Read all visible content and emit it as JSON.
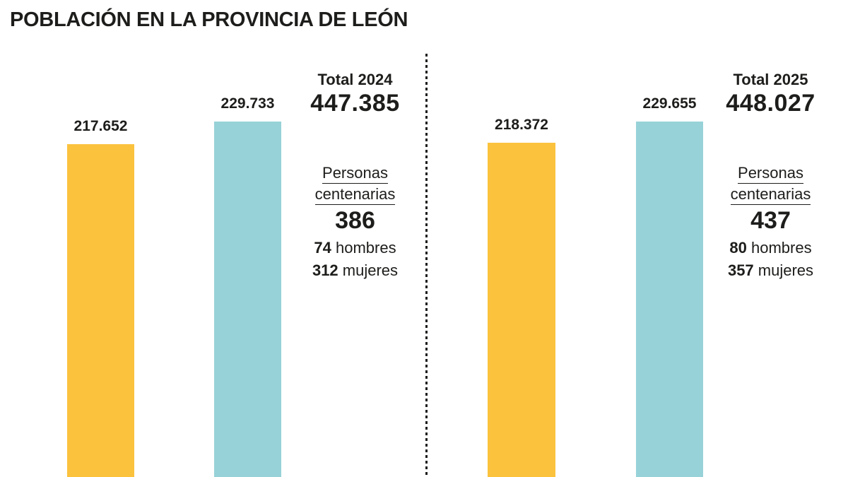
{
  "title": "POBLACIÓN EN LA PROVINCIA DE LEÓN",
  "colors": {
    "bar_orange": "#FBC23E",
    "bar_blue": "#97D2D8",
    "text": "#1D1D1B",
    "divider": "#1D1D1B"
  },
  "chart_data": {
    "type": "bar",
    "title": "POBLACIÓN EN LA PROVINCIA DE LEÓN",
    "grid": false,
    "axes_visible": false,
    "note_layout": "two side-by-side panels (2024 | 2025) separated by a vertical dashed line; bars truncated at bottom edge of image",
    "panels": [
      {
        "year_label": "Total 2024",
        "total": "447.385",
        "bars": [
          {
            "name": "hombres-2024",
            "label": "217.652",
            "value": 217652,
            "color_key": "bar_orange"
          },
          {
            "name": "mujeres-2024",
            "label": "229.733",
            "value": 229733,
            "color_key": "bar_blue"
          }
        ],
        "centenarians": {
          "heading_line1": "Personas",
          "heading_line2": "centenarias",
          "total": "386",
          "men_value": "74",
          "men_label": " hombres",
          "women_value": "312",
          "women_label": " mujeres"
        }
      },
      {
        "year_label": "Total 2025",
        "total": "448.027",
        "bars": [
          {
            "name": "hombres-2025",
            "label": "218.372",
            "value": 218372,
            "color_key": "bar_orange"
          },
          {
            "name": "mujeres-2025",
            "label": "229.655",
            "value": 229655,
            "color_key": "bar_blue"
          }
        ],
        "centenarians": {
          "heading_line1": "Personas",
          "heading_line2": "centenarias",
          "total": "437",
          "men_value": "80",
          "men_label": " hombres",
          "women_value": "357",
          "women_label": " mujeres"
        }
      }
    ]
  }
}
